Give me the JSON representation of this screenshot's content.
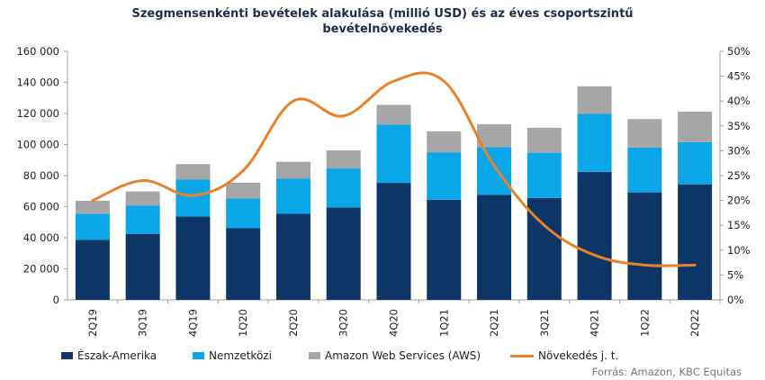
{
  "chart_data": {
    "type": "bar",
    "title_line1": "Szegmensenkénti bevételek alakulása (millió USD) és az éves csoportszintű",
    "title_line2": "bevételnövekedés",
    "categories": [
      "2Q19",
      "3Q19",
      "4Q19",
      "1Q20",
      "2Q20",
      "3Q20",
      "4Q20",
      "1Q21",
      "2Q21",
      "3Q21",
      "4Q21",
      "1Q22",
      "2Q22"
    ],
    "y_left": {
      "min": 0,
      "max": 160000,
      "ticks": [
        0,
        20000,
        40000,
        60000,
        80000,
        100000,
        120000,
        140000,
        160000
      ],
      "tick_labels": [
        "0",
        "20 000",
        "40 000",
        "60 000",
        "80 000",
        "100 000",
        "120 000",
        "140 000",
        "160 000"
      ]
    },
    "y_right": {
      "min": 0,
      "max": 50,
      "ticks": [
        0,
        5,
        10,
        15,
        20,
        25,
        30,
        35,
        40,
        45,
        50
      ],
      "tick_labels": [
        "0%",
        "5%",
        "10%",
        "15%",
        "20%",
        "25%",
        "30%",
        "35%",
        "40%",
        "45%",
        "50%"
      ]
    },
    "series": [
      {
        "name": "Észak-Amerika",
        "color": "#0d3566",
        "values": [
          38700,
          42500,
          53600,
          46100,
          55400,
          59400,
          75300,
          64400,
          67600,
          65600,
          82400,
          69200,
          74400
        ]
      },
      {
        "name": "Nemzetközi",
        "color": "#0aa6e8",
        "values": [
          16700,
          18300,
          23800,
          19100,
          22700,
          25200,
          37500,
          30600,
          30700,
          29100,
          37300,
          28800,
          27100
        ]
      },
      {
        "name": "Amazon Web Services (AWS)",
        "color": "#a6a6a6",
        "values": [
          8400,
          9000,
          10000,
          10200,
          10800,
          11600,
          12700,
          13500,
          14800,
          16100,
          17800,
          18400,
          19700
        ]
      }
    ],
    "line_series": {
      "name": "Növekedés j. t.",
      "color": "#e8822a",
      "axis": "right",
      "values": [
        20,
        24,
        21,
        26,
        40,
        37,
        44,
        44,
        27,
        15,
        9,
        7,
        7
      ]
    },
    "legend_position": "bottom",
    "grid": false
  },
  "source": "Forrás: Amazon, KBC Equitas"
}
